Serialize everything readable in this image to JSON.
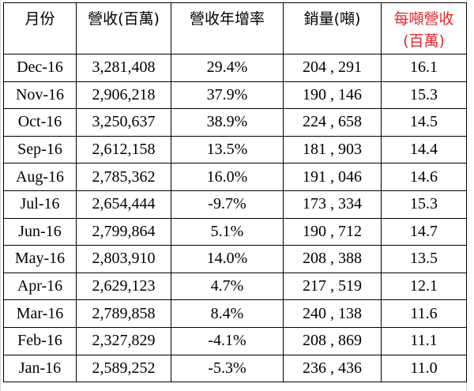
{
  "headers": {
    "month": "月份",
    "revenue": "營收(百萬)",
    "growth": "營收年增率",
    "sales": "銷量(噸)",
    "per_ton_line1": "每噸營收",
    "per_ton_line2": "(百萬)"
  },
  "colors": {
    "highlight_header": "#e8262a",
    "border": "#000000",
    "gridline": "#d4d4d4"
  },
  "rows": [
    {
      "month": "Dec-16",
      "revenue": "3,281,408",
      "growth": "29.4%",
      "sales": "204 , 291",
      "per_ton": "16.1"
    },
    {
      "month": "Nov-16",
      "revenue": "2,906,218",
      "growth": "37.9%",
      "sales": "190 , 146",
      "per_ton": "15.3"
    },
    {
      "month": "Oct-16",
      "revenue": "3,250,637",
      "growth": "38.9%",
      "sales": "224 , 658",
      "per_ton": "14.5"
    },
    {
      "month": "Sep-16",
      "revenue": "2,612,158",
      "growth": "13.5%",
      "sales": "181 , 903",
      "per_ton": "14.4"
    },
    {
      "month": "Aug-16",
      "revenue": "2,785,362",
      "growth": "16.0%",
      "sales": "191 , 046",
      "per_ton": "14.6"
    },
    {
      "month": "Jul-16",
      "revenue": "2,654,444",
      "growth": "-9.7%",
      "sales": "173 , 334",
      "per_ton": "15.3"
    },
    {
      "month": "Jun-16",
      "revenue": "2,799,864",
      "growth": "5.1%",
      "sales": "190 , 712",
      "per_ton": "14.7"
    },
    {
      "month": "May-16",
      "revenue": "2,803,910",
      "growth": "14.0%",
      "sales": "208 , 388",
      "per_ton": "13.5"
    },
    {
      "month": "Apr-16",
      "revenue": "2,629,123",
      "growth": "4.7%",
      "sales": "217 , 519",
      "per_ton": "12.1"
    },
    {
      "month": "Mar-16",
      "revenue": "2,789,858",
      "growth": "8.4%",
      "sales": "240 , 138",
      "per_ton": "11.6"
    },
    {
      "month": "Feb-16",
      "revenue": "2,327,829",
      "growth": "-4.1%",
      "sales": "208 , 869",
      "per_ton": "11.1"
    },
    {
      "month": "Jan-16",
      "revenue": "2,589,252",
      "growth": "-5.3%",
      "sales": "236 , 436",
      "per_ton": "11.0"
    }
  ]
}
